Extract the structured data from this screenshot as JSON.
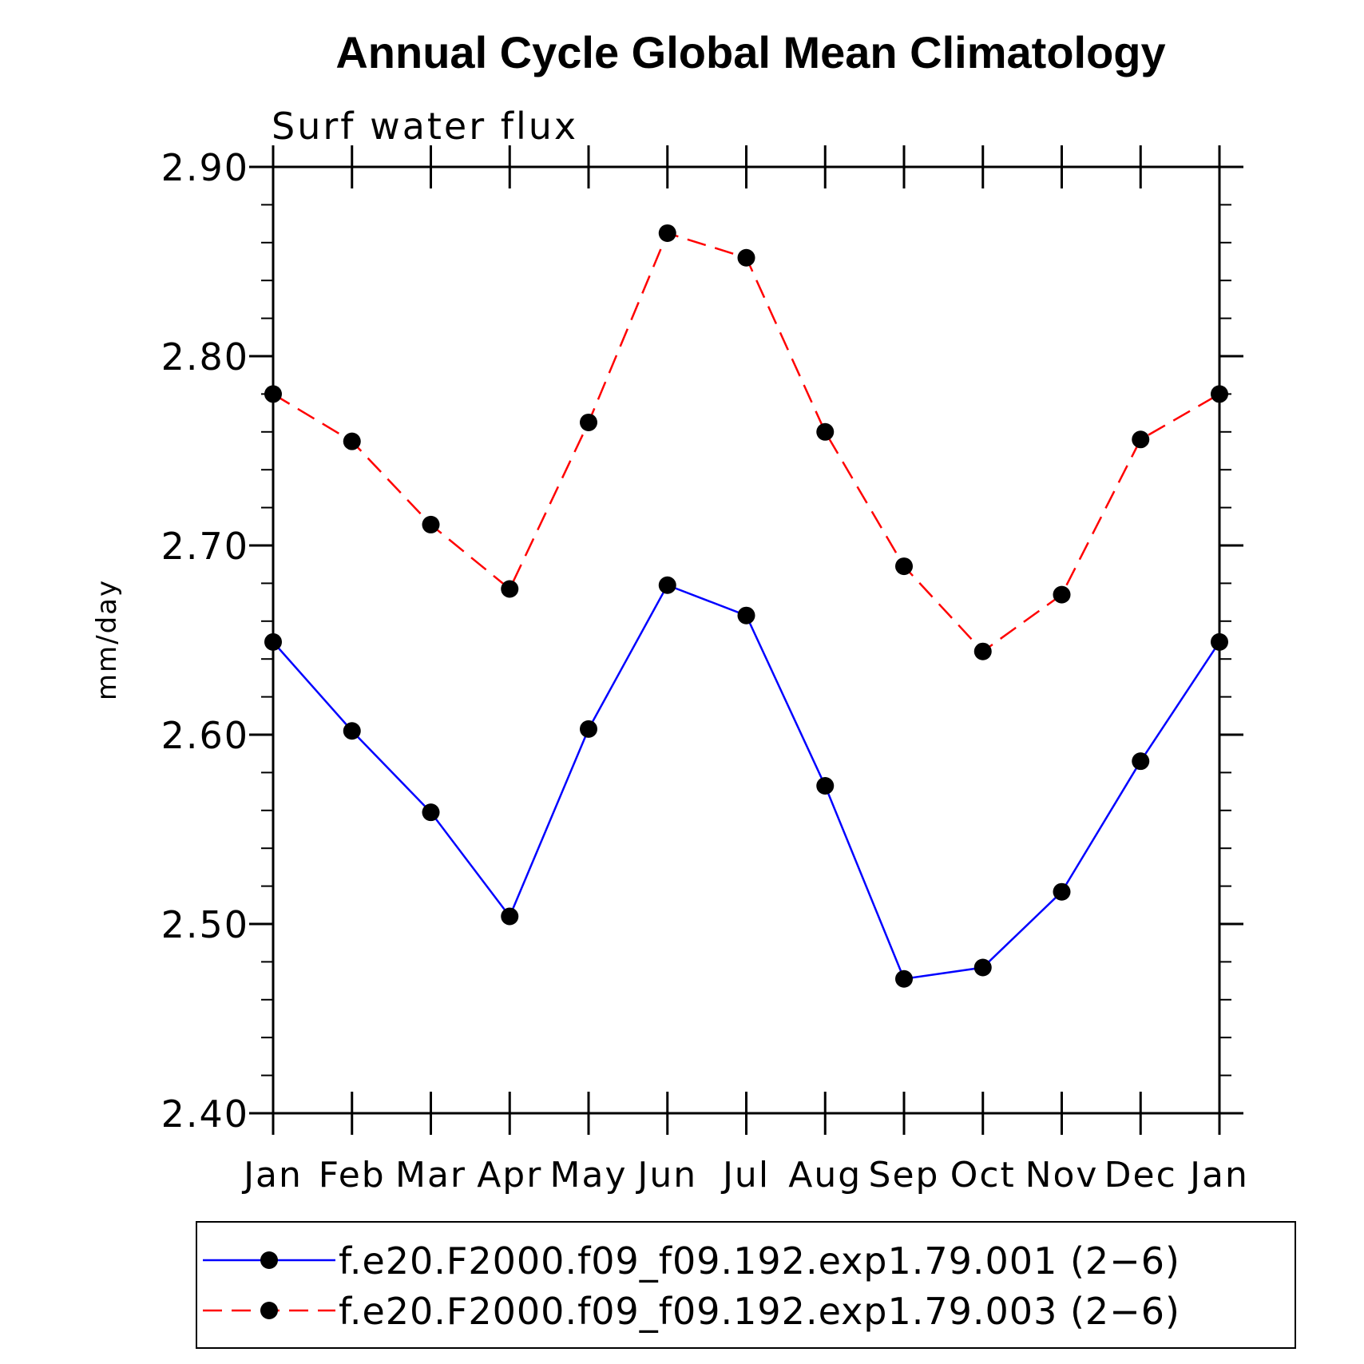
{
  "chart_data": {
    "type": "line",
    "title": "Annual Cycle Global Mean Climatology",
    "subtitle": "Surf water flux",
    "xlabel": "",
    "ylabel": "mm/day",
    "categories": [
      "Jan",
      "Feb",
      "Mar",
      "Apr",
      "May",
      "Jun",
      "Jul",
      "Aug",
      "Sep",
      "Oct",
      "Nov",
      "Dec",
      "Jan"
    ],
    "ylim": [
      2.4,
      2.9
    ],
    "yticks": [
      "2.40",
      "2.50",
      "2.60",
      "2.70",
      "2.80",
      "2.90"
    ],
    "grid": false,
    "legend_position": "bottom",
    "series": [
      {
        "name": "f.e20.F2000.f09_f09.192.exp1.79.001 (2−6)",
        "color": "#0000ff",
        "style": "solid",
        "values": [
          2.649,
          2.602,
          2.559,
          2.504,
          2.603,
          2.679,
          2.663,
          2.573,
          2.471,
          2.477,
          2.517,
          2.586,
          2.649
        ]
      },
      {
        "name": "f.e20.F2000.f09_f09.192.exp1.79.003 (2−6)",
        "color": "#ff0000",
        "style": "dashed",
        "values": [
          2.78,
          2.755,
          2.711,
          2.677,
          2.765,
          2.865,
          2.852,
          2.76,
          2.689,
          2.644,
          2.674,
          2.756,
          2.78
        ]
      }
    ]
  }
}
